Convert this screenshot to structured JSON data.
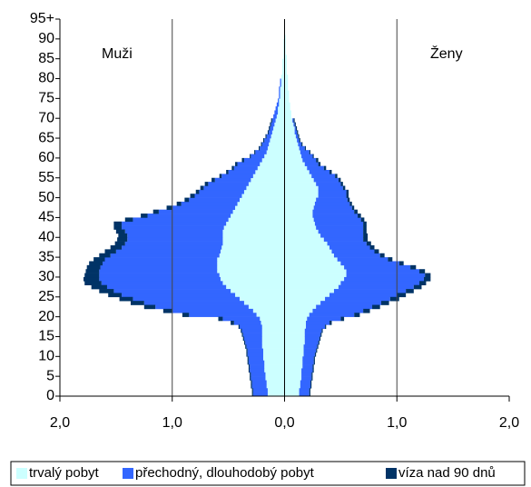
{
  "chart_data": {
    "type": "pyramid",
    "men_label": "Muži",
    "women_label": "Ženy",
    "xlim": [
      -2,
      2
    ],
    "xticks": [
      {
        "value": -2,
        "label": "2,0"
      },
      {
        "value": -1,
        "label": "1,0"
      },
      {
        "value": 0,
        "label": "0,0"
      },
      {
        "value": 1,
        "label": "1,0"
      },
      {
        "value": 2,
        "label": "2,0"
      }
    ],
    "ylim": [
      0,
      95
    ],
    "yticks": [
      0,
      5,
      10,
      15,
      20,
      25,
      30,
      35,
      40,
      45,
      50,
      55,
      60,
      65,
      70,
      75,
      80,
      85,
      90,
      {
        "value": 95,
        "label": "95+"
      }
    ],
    "ages": [
      0,
      1,
      2,
      3,
      4,
      5,
      6,
      7,
      8,
      9,
      10,
      11,
      12,
      13,
      14,
      15,
      16,
      17,
      18,
      19,
      20,
      21,
      22,
      23,
      24,
      25,
      26,
      27,
      28,
      29,
      30,
      31,
      32,
      33,
      34,
      35,
      36,
      37,
      38,
      39,
      40,
      41,
      42,
      43,
      44,
      45,
      46,
      47,
      48,
      49,
      50,
      51,
      52,
      53,
      54,
      55,
      56,
      57,
      58,
      59,
      60,
      61,
      62,
      63,
      64,
      65,
      66,
      67,
      68,
      69,
      70,
      71,
      72,
      73,
      74,
      75,
      76,
      77,
      78,
      79,
      80,
      81,
      82,
      83,
      84,
      85,
      86,
      87,
      88,
      89,
      90,
      91,
      92,
      93,
      94,
      95
    ],
    "series": [
      {
        "name": "trvalý pobyt",
        "color": "#ccffff",
        "men": [
          0.15,
          0.15,
          0.16,
          0.16,
          0.17,
          0.17,
          0.18,
          0.18,
          0.18,
          0.19,
          0.19,
          0.19,
          0.2,
          0.2,
          0.2,
          0.2,
          0.2,
          0.2,
          0.21,
          0.22,
          0.25,
          0.28,
          0.32,
          0.36,
          0.4,
          0.44,
          0.48,
          0.52,
          0.55,
          0.57,
          0.58,
          0.6,
          0.6,
          0.6,
          0.6,
          0.58,
          0.57,
          0.56,
          0.55,
          0.55,
          0.55,
          0.55,
          0.54,
          0.52,
          0.5,
          0.48,
          0.46,
          0.44,
          0.42,
          0.4,
          0.38,
          0.36,
          0.34,
          0.32,
          0.3,
          0.28,
          0.26,
          0.24,
          0.22,
          0.2,
          0.18,
          0.16,
          0.15,
          0.14,
          0.13,
          0.12,
          0.11,
          0.1,
          0.09,
          0.08,
          0.07,
          0.06,
          0.06,
          0.05,
          0.05,
          0.04,
          0.04,
          0.04,
          0.03,
          0.03,
          0.03,
          0.02,
          0.02,
          0.02,
          0.02,
          0.01,
          0.01,
          0.01,
          0.01,
          0.01,
          0,
          0,
          0,
          0,
          0,
          0
        ],
        "women": [
          0.13,
          0.13,
          0.14,
          0.14,
          0.15,
          0.15,
          0.15,
          0.16,
          0.16,
          0.16,
          0.17,
          0.17,
          0.17,
          0.18,
          0.18,
          0.18,
          0.18,
          0.19,
          0.19,
          0.2,
          0.22,
          0.25,
          0.28,
          0.32,
          0.36,
          0.4,
          0.44,
          0.48,
          0.5,
          0.53,
          0.55,
          0.55,
          0.53,
          0.5,
          0.47,
          0.44,
          0.42,
          0.4,
          0.38,
          0.35,
          0.32,
          0.3,
          0.28,
          0.27,
          0.26,
          0.25,
          0.25,
          0.26,
          0.27,
          0.28,
          0.3,
          0.3,
          0.3,
          0.28,
          0.26,
          0.24,
          0.22,
          0.2,
          0.18,
          0.16,
          0.15,
          0.14,
          0.13,
          0.12,
          0.11,
          0.1,
          0.09,
          0.09,
          0.08,
          0.07,
          0.06,
          0.06,
          0.05,
          0.05,
          0.04,
          0.04,
          0.04,
          0.03,
          0.03,
          0.03,
          0.03,
          0.02,
          0.02,
          0.02,
          0.02,
          0.02,
          0.01,
          0.01,
          0.01,
          0.01,
          0.01,
          0,
          0,
          0,
          0,
          0
        ]
      },
      {
        "name": "přechodný, dlouhodobý pobyt",
        "color": "#3366ff",
        "men": [
          0.13,
          0.13,
          0.13,
          0.13,
          0.13,
          0.13,
          0.13,
          0.13,
          0.14,
          0.13,
          0.14,
          0.14,
          0.14,
          0.15,
          0.16,
          0.17,
          0.18,
          0.2,
          0.24,
          0.33,
          0.6,
          0.72,
          0.83,
          0.89,
          0.95,
          1.01,
          1.04,
          1.06,
          1.08,
          1.08,
          1.07,
          1.05,
          1.04,
          1.02,
          1.0,
          0.97,
          0.93,
          0.89,
          0.87,
          0.85,
          0.85,
          0.87,
          0.91,
          0.93,
          0.85,
          0.74,
          0.66,
          0.56,
          0.5,
          0.45,
          0.42,
          0.4,
          0.38,
          0.36,
          0.32,
          0.28,
          0.24,
          0.21,
          0.2,
          0.16,
          0.12,
          0.1,
          0.07,
          0.06,
          0.05,
          0.04,
          0.03,
          0.03,
          0.03,
          0.03,
          0.03,
          0.03,
          0.02,
          0.02,
          0.01,
          0.01,
          0.01,
          0.01,
          0.01,
          0.01,
          0,
          0,
          0,
          0,
          0,
          0,
          0,
          0,
          0,
          0,
          0,
          0,
          0,
          0,
          0,
          0
        ],
        "women": [
          0.09,
          0.09,
          0.09,
          0.09,
          0.09,
          0.09,
          0.1,
          0.09,
          0.1,
          0.1,
          0.1,
          0.11,
          0.12,
          0.12,
          0.13,
          0.14,
          0.15,
          0.17,
          0.21,
          0.3,
          0.4,
          0.45,
          0.5,
          0.54,
          0.58,
          0.6,
          0.64,
          0.67,
          0.7,
          0.71,
          0.7,
          0.65,
          0.59,
          0.52,
          0.45,
          0.41,
          0.38,
          0.36,
          0.35,
          0.35,
          0.38,
          0.4,
          0.42,
          0.43,
          0.42,
          0.4,
          0.37,
          0.34,
          0.31,
          0.28,
          0.25,
          0.25,
          0.22,
          0.22,
          0.22,
          0.21,
          0.18,
          0.15,
          0.12,
          0.12,
          0.1,
          0.08,
          0.05,
          0.03,
          0.02,
          0.02,
          0.02,
          0.01,
          0.01,
          0.01,
          0,
          0,
          0,
          0,
          0,
          0,
          0,
          0,
          0,
          0,
          0,
          0,
          0,
          0,
          0,
          0,
          0,
          0,
          0,
          0,
          0,
          0,
          0,
          0,
          0,
          0
        ]
      },
      {
        "name": "víza nad 90 dnů",
        "color": "#003366",
        "men": [
          0.01,
          0.01,
          0.01,
          0.01,
          0.01,
          0.01,
          0.01,
          0.01,
          0.01,
          0.01,
          0.01,
          0.01,
          0.01,
          0.01,
          0.01,
          0.01,
          0.01,
          0.01,
          0.03,
          0.04,
          0.06,
          0.08,
          0.1,
          0.12,
          0.12,
          0.12,
          0.13,
          0.14,
          0.15,
          0.14,
          0.13,
          0.12,
          0.12,
          0.12,
          0.1,
          0.1,
          0.1,
          0.1,
          0.09,
          0.09,
          0.08,
          0.08,
          0.07,
          0.07,
          0.07,
          0.06,
          0.05,
          0.05,
          0.04,
          0.04,
          0.04,
          0.03,
          0.03,
          0.03,
          0.03,
          0.02,
          0.02,
          0.02,
          0.02,
          0.02,
          0.01,
          0.01,
          0.01,
          0.01,
          0.01,
          0.01,
          0.01,
          0.01,
          0.01,
          0.01,
          0,
          0,
          0,
          0,
          0,
          0,
          0,
          0,
          0,
          0,
          0,
          0,
          0,
          0,
          0,
          0,
          0,
          0,
          0,
          0,
          0,
          0,
          0,
          0,
          0,
          0
        ],
        "women": [
          0.01,
          0.01,
          0.01,
          0.01,
          0.01,
          0.01,
          0.01,
          0.01,
          0.01,
          0.01,
          0.01,
          0.01,
          0.01,
          0.01,
          0.01,
          0.01,
          0.01,
          0.01,
          0.02,
          0.03,
          0.05,
          0.06,
          0.07,
          0.07,
          0.08,
          0.08,
          0.07,
          0.07,
          0.06,
          0.06,
          0.05,
          0.05,
          0.05,
          0.04,
          0.04,
          0.04,
          0.04,
          0.04,
          0.04,
          0.04,
          0.04,
          0.03,
          0.03,
          0.03,
          0.03,
          0.03,
          0.03,
          0.02,
          0.02,
          0.02,
          0.02,
          0.02,
          0.02,
          0.02,
          0.02,
          0.02,
          0.02,
          0.02,
          0.02,
          0.02,
          0.01,
          0.01,
          0.01,
          0.01,
          0.01,
          0.01,
          0.01,
          0.01,
          0.01,
          0.01,
          0,
          0,
          0,
          0,
          0,
          0,
          0,
          0,
          0,
          0,
          0,
          0,
          0,
          0,
          0,
          0,
          0,
          0,
          0,
          0,
          0,
          0,
          0,
          0,
          0,
          0
        ]
      }
    ]
  }
}
